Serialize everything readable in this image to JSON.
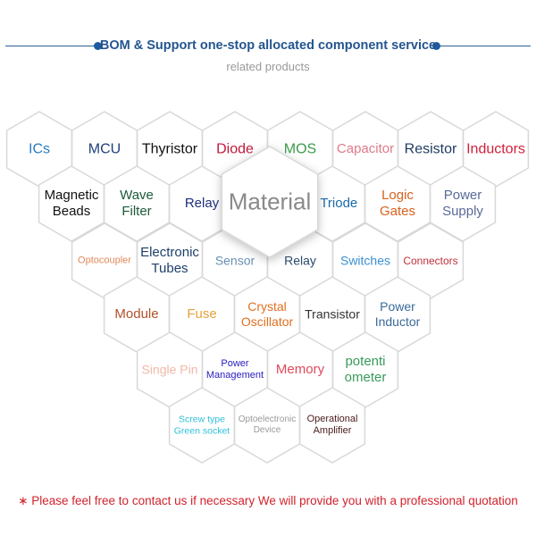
{
  "header": {
    "title": "BOM & Support one-stop allocated component service",
    "subtitle": "related products",
    "accent": "#1f5aa0"
  },
  "center": {
    "label": "Material",
    "color": "#8a8a8a"
  },
  "products": [
    {
      "label": "ICs",
      "color": "#2a7cc0",
      "row": 0,
      "col": 0,
      "size": 16
    },
    {
      "label": "MCU",
      "color": "#1e3f7a",
      "row": 0,
      "col": 1,
      "size": 16
    },
    {
      "label": "Thyristor",
      "color": "#111111",
      "row": 0,
      "col": 2,
      "size": 16
    },
    {
      "label": "Diode",
      "color": "#c0183a",
      "row": 0,
      "col": 3,
      "size": 16
    },
    {
      "label": "MOS",
      "color": "#3b9a4a",
      "row": 0,
      "col": 4,
      "size": 16
    },
    {
      "label": "Capacitor",
      "color": "#e07a88",
      "row": 0,
      "col": 5,
      "size": 15
    },
    {
      "label": "Resistor",
      "color": "#1c3a5e",
      "row": 0,
      "col": 6,
      "size": 16
    },
    {
      "label": "Inductors",
      "color": "#d0203c",
      "row": 0,
      "col": 7,
      "size": 16
    },
    {
      "label": "Magnetic\nBeads",
      "color": "#111111",
      "row": 1,
      "col": 0,
      "size": 15
    },
    {
      "label": "Wave\nFilter",
      "color": "#1e5a3a",
      "row": 1,
      "col": 1,
      "size": 15
    },
    {
      "label": "Relay",
      "color": "#1e2f7a",
      "row": 1,
      "col": 2,
      "size": 15
    },
    {
      "label": "Triode",
      "color": "#1a6aa8",
      "row": 1,
      "col": 4.1,
      "size": 15
    },
    {
      "label": "Logic\nGates",
      "color": "#d8601c",
      "row": 1,
      "col": 5,
      "size": 15
    },
    {
      "label": "Power\nSupply",
      "color": "#5a6a9a",
      "row": 1,
      "col": 6,
      "size": 15
    },
    {
      "label": "Optocoupler",
      "color": "#e08a5a",
      "row": 2,
      "col": 0,
      "size": 11
    },
    {
      "label": "Electronic\nTubes",
      "color": "#1e3f6a",
      "row": 2,
      "col": 1,
      "size": 15
    },
    {
      "label": "Sensor",
      "color": "#6a90b0",
      "row": 2,
      "col": 2,
      "size": 14
    },
    {
      "label": "Relay",
      "color": "#2a4a6a",
      "row": 2,
      "col": 3,
      "size": 14
    },
    {
      "label": "Switches",
      "color": "#3a90d0",
      "row": 2,
      "col": 4,
      "size": 14
    },
    {
      "label": "Connectors",
      "color": "#c0303a",
      "row": 2,
      "col": 5,
      "size": 12
    },
    {
      "label": "Module",
      "color": "#b0502a",
      "row": 3,
      "col": 0,
      "size": 15
    },
    {
      "label": "Fuse",
      "color": "#e8a03a",
      "row": 3,
      "col": 1,
      "size": 15
    },
    {
      "label": "Crystal\nOscillator",
      "color": "#e07020",
      "row": 3,
      "col": 2,
      "size": 14
    },
    {
      "label": "Transistor",
      "color": "#333333",
      "row": 3,
      "col": 3,
      "size": 14
    },
    {
      "label": "Power\nInductor",
      "color": "#3a6a9a",
      "row": 3,
      "col": 4,
      "size": 14
    },
    {
      "label": "Single Pin",
      "color": "#f0b8a8",
      "row": 4,
      "col": 0,
      "size": 14
    },
    {
      "label": "Power\nManagement",
      "color": "#2a20c0",
      "row": 4,
      "col": 1,
      "size": 11
    },
    {
      "label": "Memory",
      "color": "#e04a5a",
      "row": 4,
      "col": 2,
      "size": 15
    },
    {
      "label": "potenti\nometer",
      "color": "#3a9a5a",
      "row": 4,
      "col": 3,
      "size": 15
    },
    {
      "label": "Screw type\nGreen socket",
      "color": "#30c0d8",
      "row": 5,
      "col": 0,
      "size": 10.5
    },
    {
      "label": "Optoelectronic\nDevice",
      "color": "#999999",
      "row": 5,
      "col": 1,
      "size": 10
    },
    {
      "label": "Operational\nAmplifier",
      "color": "#4a1a1a",
      "row": 5,
      "col": 2,
      "size": 11
    }
  ],
  "footer": {
    "text": "∗ Please feel free to contact us if necessary We will provide you with a professional quotation",
    "color": "#d2222c"
  }
}
